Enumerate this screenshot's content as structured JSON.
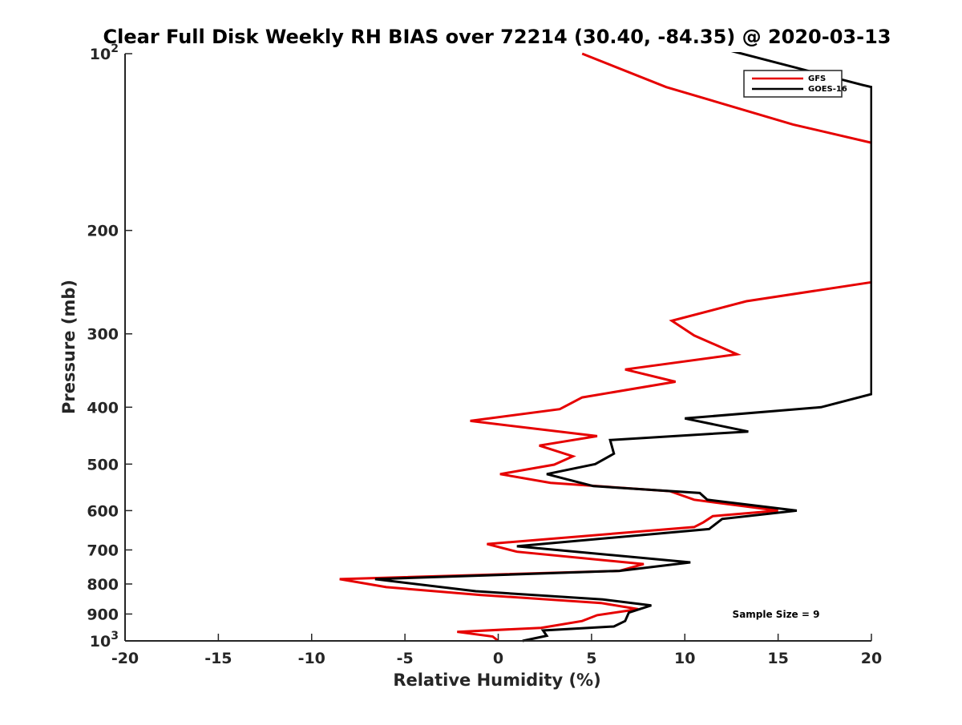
{
  "chart_data": {
    "type": "line",
    "title": "Clear Full Disk Weekly RH BIAS over 72214 (30.40, -84.35) @ 2020-03-13",
    "xlabel": "Relative Humidity (%)",
    "ylabel": "Pressure (mb)",
    "xlim": [
      -20,
      20
    ],
    "ylim": [
      100,
      1000
    ],
    "y_scale": "log",
    "y_reversed": true,
    "x_ticks": [
      -20,
      -15,
      -10,
      -5,
      0,
      5,
      10,
      15,
      20
    ],
    "x_tick_labels": [
      "-20",
      "-15",
      "-10",
      "-5",
      "0",
      "5",
      "10",
      "15",
      "20"
    ],
    "y_ticks": [
      100,
      200,
      300,
      400,
      500,
      600,
      700,
      800,
      900,
      1000
    ],
    "y_tick_labels": [
      {
        "base": "10",
        "exp": "2"
      },
      {
        "base": "200"
      },
      {
        "base": "300"
      },
      {
        "base": "400"
      },
      {
        "base": "500"
      },
      {
        "base": "600"
      },
      {
        "base": "700"
      },
      {
        "base": "800"
      },
      {
        "base": "900"
      },
      {
        "base": "10",
        "exp": "3"
      }
    ],
    "grid": false,
    "legend_position": "top-right",
    "annotation": "Sample Size = 9",
    "series": [
      {
        "name": "GFS",
        "color": "#e60000",
        "x": [
          4.5,
          9.0,
          15.8,
          20.5,
          20.0,
          13.3,
          9.3,
          10.5,
          12.8,
          6.8,
          9.5,
          4.5,
          3.3,
          -1.5,
          5.3,
          2.2,
          4.0,
          3.0,
          0.1,
          2.8,
          9.2,
          10.5,
          15.0,
          11.5,
          11.0,
          10.5,
          -0.6,
          1.0,
          7.8,
          6.5,
          -8.5,
          -6.0,
          -1.0,
          5.5,
          7.5,
          5.3,
          4.5,
          2.3,
          -2.2,
          -0.3,
          0.0
        ],
        "y": [
          100,
          114,
          132,
          143,
          245,
          264,
          285,
          302,
          325,
          345,
          362,
          385,
          403,
          422,
          448,
          465,
          485,
          501,
          520,
          538,
          556,
          575,
          600,
          613,
          628,
          640,
          684,
          705,
          740,
          760,
          785,
          810,
          835,
          862,
          883,
          904,
          925,
          950,
          965,
          983,
          1000
        ]
      },
      {
        "name": "GOES-16",
        "color": "#000000",
        "x": [
          12.0,
          19.5,
          20.0,
          20.0,
          17.3,
          10.0,
          13.4,
          6.0,
          6.2,
          5.2,
          2.6,
          5.1,
          10.8,
          11.2,
          16.0,
          12.0,
          11.3,
          1.0,
          10.3,
          6.5,
          -6.6,
          -1.2,
          5.6,
          8.2,
          7.0,
          6.8,
          6.2,
          2.4,
          2.6,
          1.3
        ],
        "y": [
          98,
          113,
          114,
          380,
          400,
          418,
          440,
          455,
          480,
          500,
          520,
          545,
          560,
          575,
          600,
          620,
          645,
          690,
          735,
          760,
          785,
          823,
          850,
          870,
          895,
          925,
          945,
          960,
          980,
          1000
        ]
      }
    ]
  }
}
